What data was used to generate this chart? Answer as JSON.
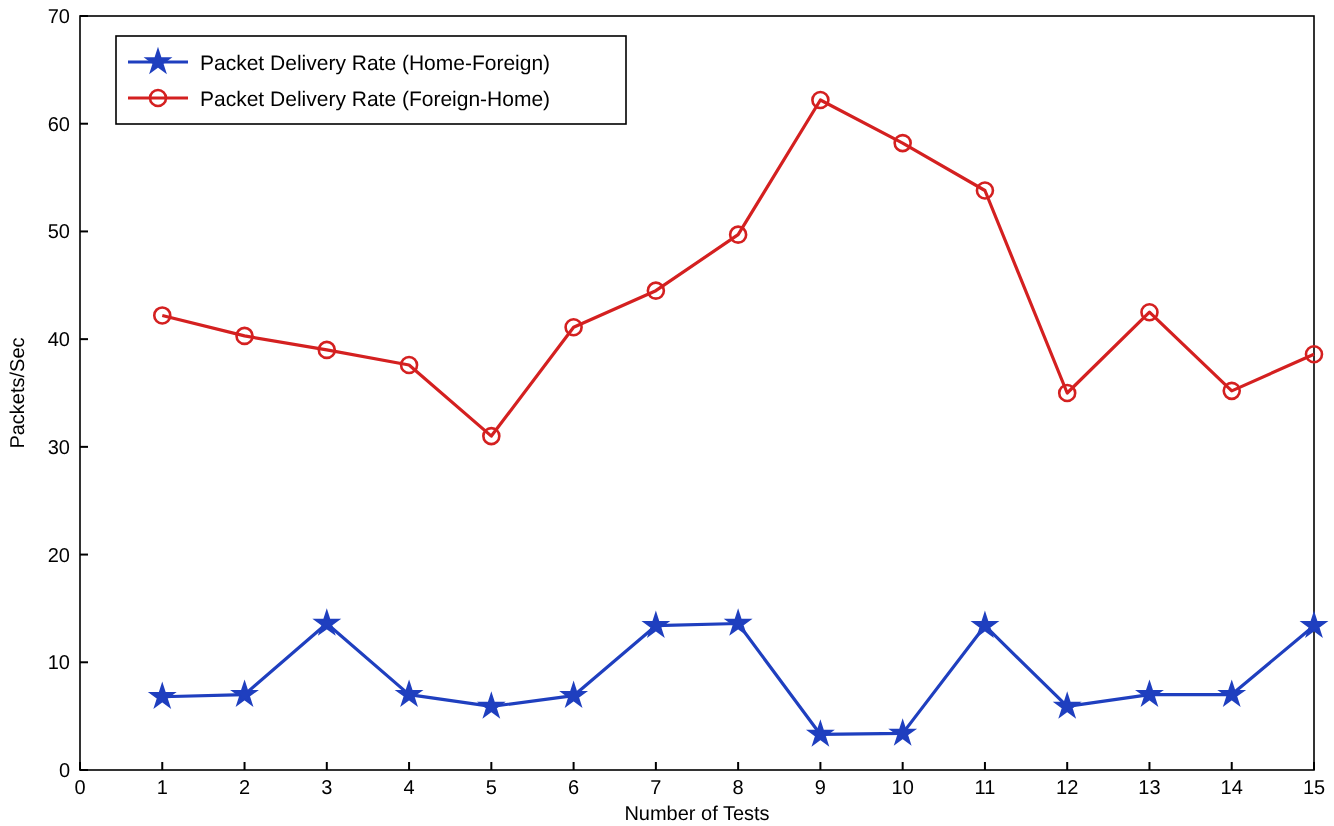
{
  "chart_data": {
    "type": "line",
    "xlabel": "Number of Tests",
    "ylabel": "Packets/Sec",
    "x": [
      1,
      2,
      3,
      4,
      5,
      6,
      7,
      8,
      9,
      10,
      11,
      12,
      13,
      14,
      15
    ],
    "xlim": [
      0,
      15
    ],
    "xticks": [
      0,
      1,
      2,
      3,
      4,
      5,
      6,
      7,
      8,
      9,
      10,
      11,
      12,
      13,
      14,
      15
    ],
    "ylim": [
      0,
      70
    ],
    "yticks": [
      0,
      10,
      20,
      30,
      40,
      50,
      60,
      70
    ],
    "legend": "top left",
    "grid": false,
    "series": [
      {
        "name": "Packet Delivery Rate (Home-Foreign)",
        "color": "#1f3fbf",
        "marker": "star",
        "values": [
          6.8,
          7,
          13.6,
          7,
          5.9,
          6.9,
          13.4,
          13.6,
          3.3,
          3.4,
          13.4,
          5.9,
          7,
          7,
          13.4
        ]
      },
      {
        "name": "Packet Delivery Rate (Foreign-Home)",
        "color": "#d42020",
        "marker": "circle",
        "values": [
          42.2,
          40.3,
          39,
          37.6,
          31,
          41.1,
          44.5,
          49.7,
          62.2,
          58.2,
          53.8,
          35,
          42.5,
          35.2,
          38.6
        ]
      }
    ]
  }
}
